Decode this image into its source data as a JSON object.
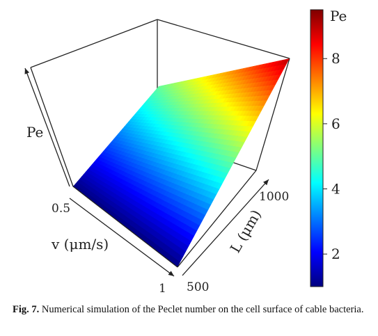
{
  "chart_data": {
    "type": "surface3d",
    "zlabel": "Pe",
    "xlabel": "v (μm/s)",
    "ylabel": "L (μm)",
    "x_ticks": [
      "0.5",
      "1"
    ],
    "y_ticks": [
      "500",
      "1000"
    ],
    "x_range": [
      0.5,
      1
    ],
    "y_range": [
      500,
      1000
    ],
    "surface_corners": [
      {
        "v": 0.5,
        "L": 500,
        "Pe": 1.0
      },
      {
        "v": 1,
        "L": 500,
        "Pe": 1.0
      },
      {
        "v": 0.5,
        "L": 1000,
        "Pe": 5.0
      },
      {
        "v": 1,
        "L": 1000,
        "Pe": 9.0
      }
    ],
    "colorbar": {
      "title": "Pe",
      "ticks": [
        "2",
        "4",
        "6",
        "8"
      ],
      "range": [
        1,
        9.5
      ],
      "colormap": [
        "#00007f",
        "#0000ff",
        "#007fff",
        "#00ffff",
        "#7fff7f",
        "#ffff00",
        "#ff7f00",
        "#ff0000",
        "#7f0000"
      ]
    }
  },
  "caption": {
    "label": "Fig. 7.",
    "text": "Numerical simulation of the Peclet number on the cell surface of cable bacteria."
  }
}
